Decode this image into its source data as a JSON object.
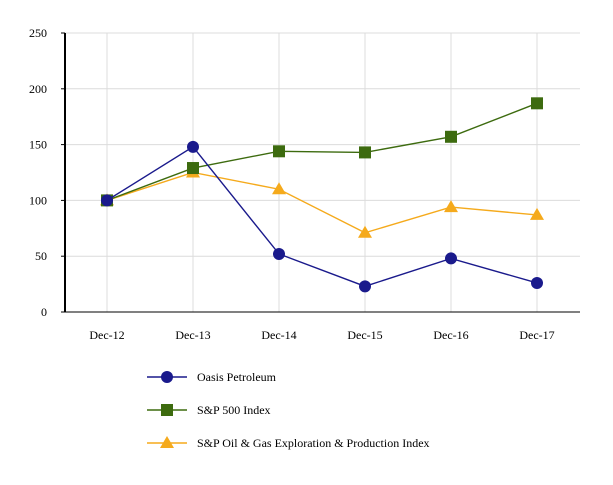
{
  "chart_data": {
    "type": "line",
    "title": "",
    "xlabel": "",
    "ylabel": "",
    "categories": [
      "Dec-12",
      "Dec-13",
      "Dec-14",
      "Dec-15",
      "Dec-16",
      "Dec-17"
    ],
    "ylim": [
      0,
      250
    ],
    "yticks": [
      0,
      50,
      100,
      150,
      200,
      250
    ],
    "grid": true,
    "legend_position": "bottom",
    "series": [
      {
        "name": "Oasis Petroleum",
        "color": "#1a1a8c",
        "marker": "circle",
        "values": [
          100,
          148,
          52,
          23,
          48,
          26
        ]
      },
      {
        "name": "S&P 500 Index",
        "color": "#3d6b0f",
        "marker": "square",
        "values": [
          100,
          129,
          144,
          143,
          157,
          187
        ]
      },
      {
        "name": "S&P Oil & Gas Exploration & Production Index",
        "color": "#f5aa1c",
        "marker": "triangle",
        "values": [
          100,
          125,
          110,
          71,
          94,
          87
        ]
      }
    ]
  }
}
